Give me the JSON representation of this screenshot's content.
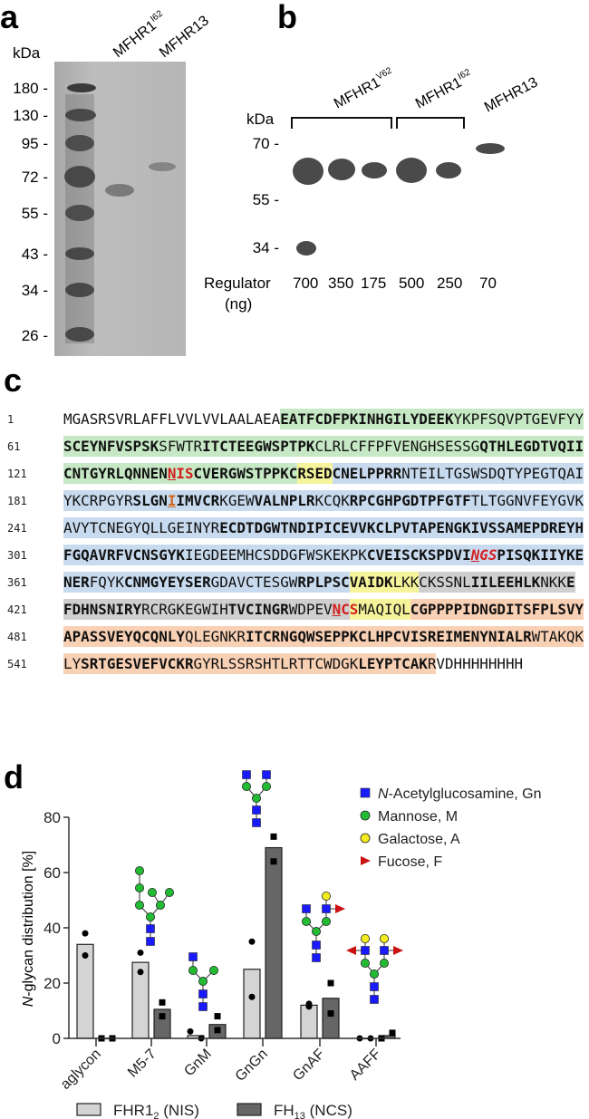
{
  "panels": {
    "a": "a",
    "b": "b",
    "c": "c",
    "d": "d"
  },
  "panel_a": {
    "unit": "kDa",
    "markers": [
      "180 -",
      "130 -",
      "95 -",
      "72 -",
      "55 -",
      "43 -",
      "34 -",
      "26 -"
    ],
    "lanes": [
      {
        "name": "MFHR1",
        "sup": "I62"
      },
      {
        "name": "MFHR13",
        "sup": ""
      }
    ]
  },
  "panel_b": {
    "unit": "kDa",
    "markers": [
      "70 -",
      "55 -",
      "34 -"
    ],
    "groups": [
      {
        "name": "MFHR1",
        "sup": "V62"
      },
      {
        "name": "MFHR1",
        "sup": "I62"
      },
      {
        "name": "MFHR13",
        "sup": ""
      }
    ],
    "regulator_label": "Regulator",
    "regulator_unit": "(ng)",
    "amounts": [
      "700",
      "350",
      "175",
      "500",
      "250",
      "70"
    ]
  },
  "sequence": [
    {
      "start": "1",
      "segs": [
        [
          "MGASRSVRLAFFLVVLVVLAALAEA",
          "",
          ""
        ],
        [
          "EATFCDFPKINHGILYDEEK",
          "green",
          "b"
        ],
        [
          "YKPFSQVPTGEVFYY",
          "green",
          ""
        ]
      ]
    },
    {
      "start": "61",
      "segs": [
        [
          "SCEYNFVSPSK",
          "green",
          "b"
        ],
        [
          "SFWTR",
          "green",
          ""
        ],
        [
          "ITCTEEGWSPTPK",
          "green",
          "b"
        ],
        [
          "CLRLCFFPFVENGHSESSG",
          "green",
          ""
        ],
        [
          "QTHLEGDTVQII",
          "green",
          "b"
        ]
      ]
    },
    {
      "start": "121",
      "segs": [
        [
          "CNTGYRLQNNEN",
          "green",
          "b"
        ],
        [
          "N",
          "green",
          "b red ul"
        ],
        [
          "IS",
          "green",
          "b red"
        ],
        [
          "CVERGWSTPPKC",
          "green",
          "b"
        ],
        [
          "RSED",
          "yellow",
          "b"
        ],
        [
          "CNELPPRR",
          "blue",
          "b"
        ],
        [
          "NTEILTGSWSDQTYPEGTQAI",
          "blue",
          ""
        ]
      ]
    },
    {
      "start": "181",
      "segs": [
        [
          "YKCRPGYR",
          "blue",
          ""
        ],
        [
          "SLGN",
          "blue",
          "b"
        ],
        [
          "I",
          "blue",
          "b orange ul"
        ],
        [
          "IMVCR",
          "blue",
          "b"
        ],
        [
          "KGEW",
          "blue",
          ""
        ],
        [
          "VALNPLR",
          "blue",
          "b"
        ],
        [
          "KCQK",
          "blue",
          ""
        ],
        [
          "RPCGHPGDTPFGTF",
          "blue",
          "b"
        ],
        [
          "TLTGGNVFEYGVK",
          "blue",
          ""
        ]
      ]
    },
    {
      "start": "241",
      "segs": [
        [
          "AVYTCNEGYQLLGEINYR",
          "blue",
          ""
        ],
        [
          "ECDTDGWTNDIPICEVVKCLPVTAPENGKIVSSAMEPDREYH",
          "blue",
          "b"
        ]
      ]
    },
    {
      "start": "301",
      "segs": [
        [
          "FGQAVRFVCNSGYK",
          "blue",
          "b"
        ],
        [
          "IEGDEEMHCSDDGFWSKEKPK",
          "blue",
          ""
        ],
        [
          "CVEISCKSPDVI",
          "blue",
          "b"
        ],
        [
          "N",
          "blue",
          "b red it ul"
        ],
        [
          "GS",
          "blue",
          "b red it"
        ],
        [
          "PISQKIIYKE",
          "blue",
          "b"
        ]
      ]
    },
    {
      "start": "361",
      "segs": [
        [
          "NER",
          "blue",
          "b"
        ],
        [
          "FQYK",
          "blue",
          ""
        ],
        [
          "CNMGYEYSER",
          "blue",
          "b"
        ],
        [
          "GDAVCTESGW",
          "blue",
          ""
        ],
        [
          "RPLPSC",
          "blue",
          "b"
        ],
        [
          "VAIDK",
          "yellow",
          "b"
        ],
        [
          "LKK",
          "yellow",
          ""
        ],
        [
          "CKSSNL",
          "grey",
          ""
        ],
        [
          "IILEEHLK",
          "grey",
          "b"
        ],
        [
          "NKK",
          "grey",
          ""
        ],
        [
          "E",
          "grey",
          "b"
        ]
      ]
    },
    {
      "start": "421",
      "segs": [
        [
          "FDHNSNIRY",
          "grey",
          "b"
        ],
        [
          "RCRGKEGWIH",
          "grey",
          ""
        ],
        [
          "TVCINGR",
          "grey",
          "b"
        ],
        [
          "WDPEV",
          "grey",
          ""
        ],
        [
          "N",
          "grey",
          "b red ul"
        ],
        [
          "C",
          "grey",
          "b red"
        ],
        [
          "S",
          "yellow",
          "b red"
        ],
        [
          "MAQIQL",
          "yellow",
          ""
        ],
        [
          "CGPPPPIDNGDITSFPLSVY",
          "orange",
          "b"
        ]
      ]
    },
    {
      "start": "481",
      "segs": [
        [
          "APASSVEYQCQNLY",
          "orange",
          "b"
        ],
        [
          "QLEGNKR",
          "orange",
          ""
        ],
        [
          "ITCRNGQWSEPPKCLHPCVISREIMENYNIALR",
          "orange",
          "b"
        ],
        [
          "WTAKQK",
          "orange",
          ""
        ]
      ]
    },
    {
      "start": "541",
      "segs": [
        [
          "LY",
          "orange",
          ""
        ],
        [
          "SRTGESVEFVCKR",
          "orange",
          "b"
        ],
        [
          "GYRLSSRSHTLRTTCWDGK",
          "orange",
          ""
        ],
        [
          "LEYPTCAK",
          "orange",
          "b"
        ],
        [
          "R",
          "orange",
          ""
        ],
        [
          "VDHHHHHHHH",
          "",
          ""
        ]
      ]
    }
  ],
  "chart_data": {
    "type": "bar",
    "ylabel_italic": "N",
    "ylabel": "-glycan distribution [%]",
    "ylim": [
      0,
      80
    ],
    "yticks": [
      "0",
      "20",
      "40",
      "60",
      "80"
    ],
    "categories": [
      "aglycon",
      "M5-7",
      "GnM",
      "GnGn",
      "GnAF",
      "AAFF"
    ],
    "series": [
      {
        "name": "FHR1",
        "sub": "2",
        "suffix": " (NIS)",
        "color": "#d4d4d4",
        "marker": "circle",
        "values": [
          34,
          27.5,
          1,
          25,
          12,
          0
        ],
        "points": [
          [
            38,
            30
          ],
          [
            31,
            24
          ],
          [
            2.5,
            0
          ],
          [
            35,
            15
          ],
          [
            11.5,
            12.5
          ],
          [
            0,
            0
          ]
        ]
      },
      {
        "name": "FH",
        "sub": "13",
        "suffix": " (NCS)",
        "color": "#666666",
        "marker": "square",
        "values": [
          0,
          10.5,
          5,
          69,
          14.5,
          1
        ],
        "points": [
          [
            0,
            0
          ],
          [
            13,
            8
          ],
          [
            8,
            3
          ],
          [
            73,
            64
          ],
          [
            20,
            9
          ],
          [
            0,
            2
          ]
        ]
      }
    ],
    "glycan_legend": [
      {
        "italic": "N",
        "label": "-Acetylglucosamine, Gn",
        "color": "#1a1aff",
        "shape": "square"
      },
      {
        "italic": "",
        "label": "Mannose, M",
        "color": "#22bb33",
        "shape": "circle"
      },
      {
        "italic": "",
        "label": "Galactose, A",
        "color": "#f2ec1e",
        "shape": "circle"
      },
      {
        "italic": "",
        "label": "Fucose, F",
        "color": "#cc1111",
        "shape": "triangle"
      }
    ],
    "legend_position": "bottom"
  }
}
